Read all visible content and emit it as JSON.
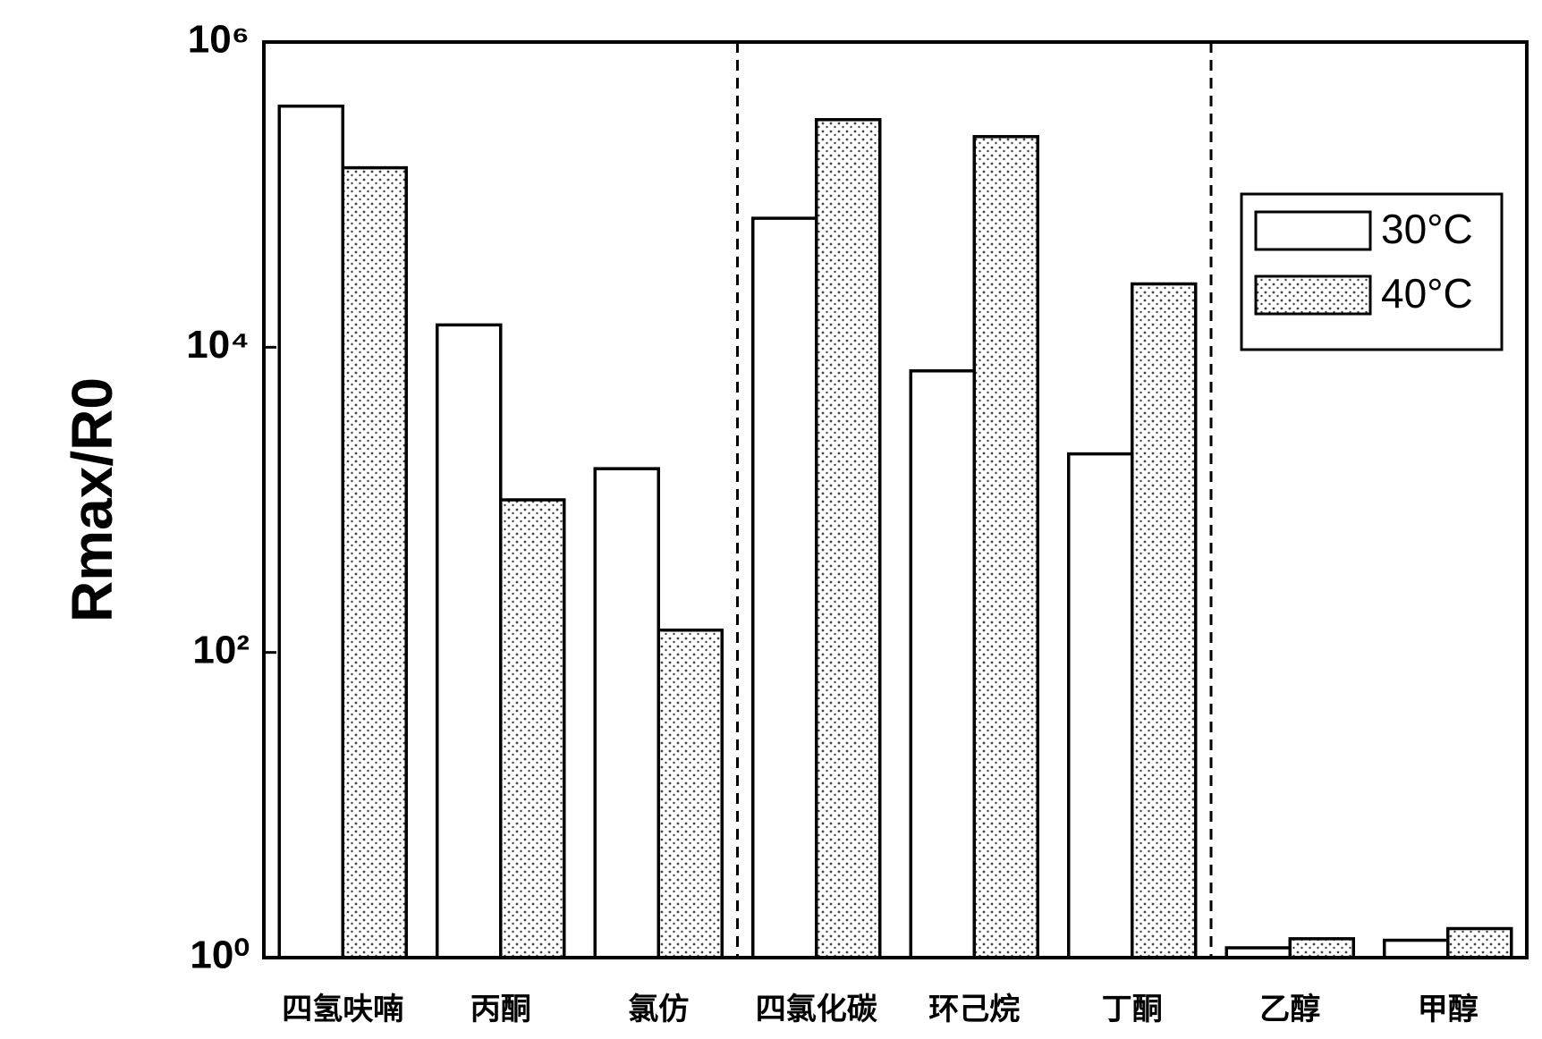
{
  "chart_data": {
    "type": "bar",
    "ylabel": "Rmax/R0",
    "categories": [
      "四氢呋喃",
      "丙酮",
      "氯仿",
      "四氯化碳",
      "环己烷",
      "丁酮",
      "乙醇",
      "甲醇"
    ],
    "series": [
      {
        "name": "30°C",
        "color": "#ffffff",
        "values": [
          380000,
          14000,
          1600,
          70000,
          7000,
          2000,
          1.16,
          1.3
        ]
      },
      {
        "name": "40°C",
        "color": "#444444",
        "values": [
          150000,
          1000,
          140,
          310000,
          240000,
          26000,
          1.33,
          1.55
        ]
      }
    ],
    "log_scale": true,
    "ylim": [
      1,
      1000000
    ],
    "yticks": [
      {
        "value": 1,
        "label": "10⁰"
      },
      {
        "value": 100,
        "label": "10²"
      },
      {
        "value": 10000,
        "label": "10⁴"
      },
      {
        "value": 1000000,
        "label": "10⁶"
      }
    ],
    "legend": "upper right"
  }
}
